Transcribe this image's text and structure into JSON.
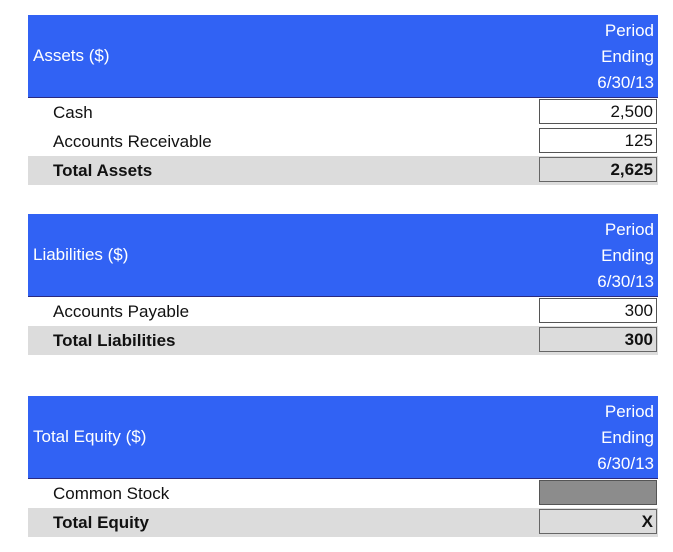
{
  "assets": {
    "title": "Assets ($)",
    "period": [
      "Period",
      "Ending",
      "6/30/13"
    ],
    "rows": [
      {
        "label": "Cash",
        "value": "2,500"
      },
      {
        "label": "Accounts Receivable",
        "value": "125"
      }
    ],
    "total": {
      "label": "Total Assets",
      "value": "2,625"
    }
  },
  "liabilities": {
    "title": "Liabilities ($)",
    "period": [
      "Period",
      "Ending",
      "6/30/13"
    ],
    "rows": [
      {
        "label": "Accounts Payable",
        "value": "300"
      }
    ],
    "total": {
      "label": "Total Liabilities",
      "value": "300"
    }
  },
  "equity": {
    "title": "Total Equity ($)",
    "period": [
      "Period",
      "Ending",
      "6/30/13"
    ],
    "rows": [
      {
        "label": "Common Stock",
        "value": ""
      }
    ],
    "total": {
      "label": "Total Equity",
      "value": "X"
    }
  },
  "colors": {
    "header_bg": "#3162f4",
    "total_row_bg": "#dcdcdc",
    "empty_cell_bg": "#8c8c8c"
  }
}
